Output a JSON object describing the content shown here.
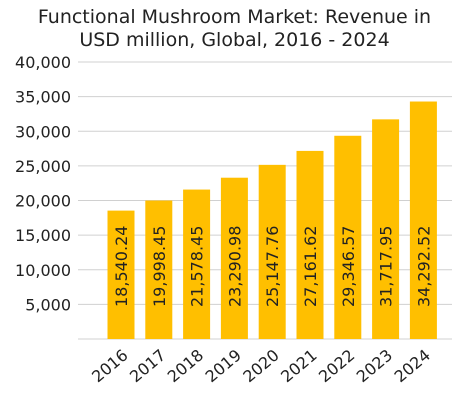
{
  "chart_data": {
    "type": "bar",
    "title": "Functional Mushroom Market: Revenue in USD million, Global, 2016 - 2024",
    "title_lines": [
      "Functional Mushroom Market: Revenue in",
      "USD million, Global, 2016 - 2024"
    ],
    "categories": [
      "2016",
      "2017",
      "2018",
      "2019",
      "2020",
      "2021",
      "2022",
      "2023",
      "2024"
    ],
    "values": [
      18540.24,
      19998.45,
      21578.45,
      23290.98,
      25147.76,
      27161.62,
      29346.57,
      31717.95,
      34292.52
    ],
    "value_labels": [
      "18,540.24",
      "19,998.45",
      "21,578.45",
      "23,290.98",
      "25,147.76",
      "27,161.62",
      "29,346.57",
      "31,717.95",
      "34,292.52"
    ],
    "ylim": [
      0,
      40000
    ],
    "yticks": [
      5000,
      10000,
      15000,
      20000,
      25000,
      30000,
      35000,
      40000
    ],
    "ytick_labels": [
      "5,000",
      "10,000",
      "15,000",
      "20,000",
      "25,000",
      "30,000",
      "35,000",
      "40,000"
    ],
    "xlabel": "",
    "ylabel": "",
    "grid": "horizontal",
    "legend": "none",
    "bar_color": "#FFBF00",
    "grid_color": "#D0D0D0",
    "text_color": "#222222"
  }
}
